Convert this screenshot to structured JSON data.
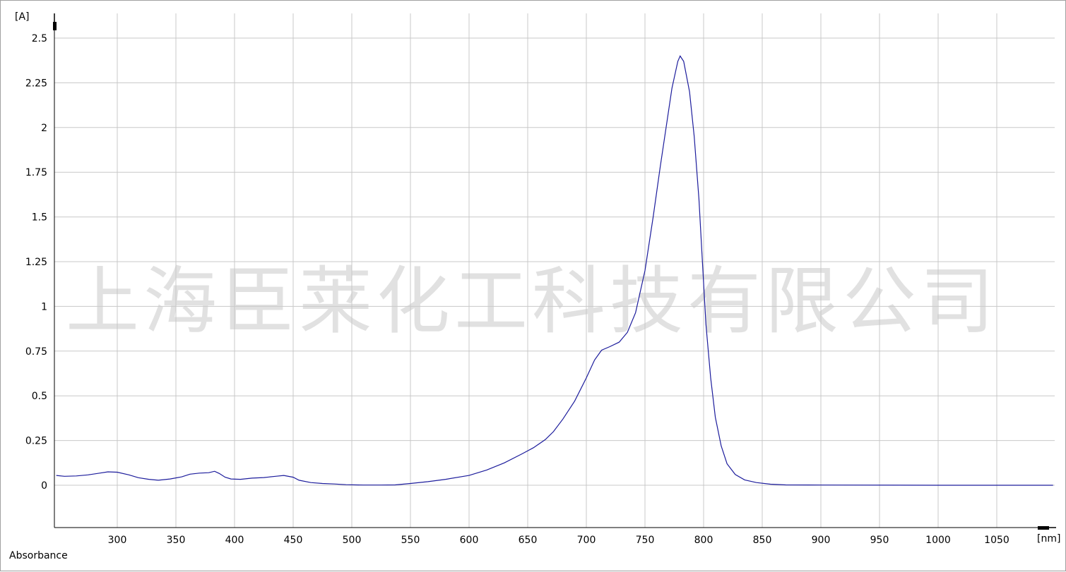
{
  "chart_data": {
    "type": "line",
    "title": "",
    "xlabel": "",
    "ylabel": "Absorbance",
    "x_unit": "[nm]",
    "y_unit": "[A]",
    "xlim": [
      248,
      1098
    ],
    "ylim": [
      -0.24,
      2.62
    ],
    "x_ticks": [
      300,
      350,
      400,
      450,
      500,
      550,
      600,
      650,
      700,
      750,
      800,
      850,
      900,
      950,
      1000,
      1050
    ],
    "y_ticks": [
      0,
      0.25,
      0.5,
      0.75,
      1,
      1.25,
      1.5,
      1.75,
      2,
      2.25,
      2.5
    ],
    "y_tick_labels": [
      "0",
      "0.25",
      "0.5",
      "0.75",
      "1",
      "1.25",
      "1.5",
      "1.75",
      "2",
      "2.25",
      "2.5"
    ],
    "grid": true,
    "watermark": "上海臣莱化工科技有限公司",
    "series": [
      {
        "color": "#1c1c9c",
        "points": [
          [
            248,
            0.055
          ],
          [
            255,
            0.05
          ],
          [
            265,
            0.052
          ],
          [
            275,
            0.058
          ],
          [
            285,
            0.068
          ],
          [
            292,
            0.075
          ],
          [
            300,
            0.073
          ],
          [
            310,
            0.058
          ],
          [
            318,
            0.042
          ],
          [
            327,
            0.033
          ],
          [
            335,
            0.028
          ],
          [
            345,
            0.035
          ],
          [
            355,
            0.047
          ],
          [
            362,
            0.062
          ],
          [
            370,
            0.068
          ],
          [
            378,
            0.07
          ],
          [
            383,
            0.078
          ],
          [
            387,
            0.066
          ],
          [
            392,
            0.045
          ],
          [
            397,
            0.035
          ],
          [
            405,
            0.033
          ],
          [
            415,
            0.04
          ],
          [
            425,
            0.043
          ],
          [
            435,
            0.05
          ],
          [
            442,
            0.055
          ],
          [
            450,
            0.045
          ],
          [
            455,
            0.028
          ],
          [
            465,
            0.015
          ],
          [
            475,
            0.01
          ],
          [
            485,
            0.007
          ],
          [
            495,
            0.003
          ],
          [
            510,
            0.001
          ],
          [
            525,
            0.001
          ],
          [
            537,
            0.002
          ],
          [
            550,
            0.01
          ],
          [
            565,
            0.02
          ],
          [
            580,
            0.033
          ],
          [
            600,
            0.055
          ],
          [
            615,
            0.085
          ],
          [
            630,
            0.125
          ],
          [
            645,
            0.175
          ],
          [
            655,
            0.21
          ],
          [
            665,
            0.255
          ],
          [
            672,
            0.3
          ],
          [
            680,
            0.37
          ],
          [
            690,
            0.47
          ],
          [
            700,
            0.6
          ],
          [
            707,
            0.7
          ],
          [
            713,
            0.755
          ],
          [
            720,
            0.775
          ],
          [
            728,
            0.8
          ],
          [
            735,
            0.855
          ],
          [
            742,
            0.965
          ],
          [
            750,
            1.2
          ],
          [
            757,
            1.5
          ],
          [
            763,
            1.78
          ],
          [
            768,
            2.0
          ],
          [
            773,
            2.22
          ],
          [
            778,
            2.37
          ],
          [
            780,
            2.4
          ],
          [
            783,
            2.37
          ],
          [
            788,
            2.2
          ],
          [
            792,
            1.95
          ],
          [
            796,
            1.6
          ],
          [
            799,
            1.25
          ],
          [
            802,
            0.9
          ],
          [
            806,
            0.6
          ],
          [
            810,
            0.38
          ],
          [
            815,
            0.22
          ],
          [
            820,
            0.12
          ],
          [
            827,
            0.06
          ],
          [
            835,
            0.03
          ],
          [
            845,
            0.015
          ],
          [
            857,
            0.006
          ],
          [
            870,
            0.002
          ],
          [
            900,
            0.001
          ],
          [
            1000,
            0.0
          ],
          [
            1060,
            0.0
          ],
          [
            1098,
            0.0
          ]
        ]
      }
    ]
  }
}
